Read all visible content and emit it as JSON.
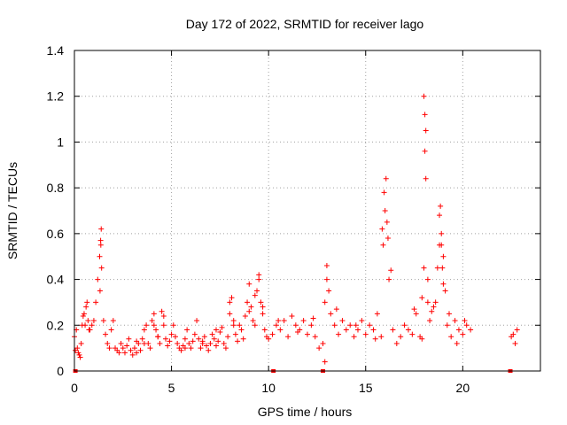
{
  "chart_data": {
    "type": "scatter",
    "title": "Day 172 of 2022, SRMTID for receiver lago",
    "xlabel": "GPS time / hours",
    "ylabel": "SRMTID / TECUs",
    "xlim": [
      0,
      24
    ],
    "ylim": [
      0,
      1.4
    ],
    "xticks": [
      0,
      5,
      10,
      15,
      20
    ],
    "xtick_labels": [
      "0",
      "5",
      "10",
      "15",
      "20"
    ],
    "yticks": [
      0,
      0.2,
      0.4,
      0.6,
      0.8,
      1,
      1.2,
      1.4
    ],
    "ytick_labels": [
      "0",
      "0.2",
      "0.4",
      "0.6",
      "0.8",
      "1",
      "1.2",
      "1.4"
    ],
    "grid": true,
    "marker": "plus",
    "color": "#ff0000",
    "series": [
      {
        "name": "SRMTID",
        "x": [
          0.0,
          0.1,
          0.2,
          0.3,
          0.4,
          0.5,
          0.6,
          0.7,
          0.8,
          0.9,
          1.0,
          1.1,
          1.2,
          1.3,
          1.35,
          1.4,
          1.5,
          1.6,
          1.7,
          1.8,
          1.9,
          2.0,
          2.1,
          2.2,
          2.3,
          2.4,
          2.5,
          2.6,
          2.7,
          2.8,
          2.9,
          3.0,
          3.1,
          3.2,
          3.3,
          3.4,
          3.5,
          3.6,
          3.7,
          3.8,
          3.9,
          4.0,
          4.1,
          4.2,
          4.3,
          4.4,
          4.5,
          4.6,
          4.7,
          4.8,
          4.9,
          5.0,
          5.1,
          5.2,
          5.3,
          5.4,
          5.5,
          5.6,
          5.7,
          5.8,
          5.9,
          6.0,
          6.1,
          6.2,
          6.3,
          6.4,
          6.5,
          6.6,
          6.7,
          6.8,
          6.9,
          7.0,
          7.1,
          7.2,
          7.3,
          7.4,
          7.5,
          7.6,
          7.7,
          7.8,
          7.9,
          8.0,
          8.1,
          8.2,
          8.3,
          8.4,
          8.5,
          8.6,
          8.7,
          8.8,
          8.9,
          9.0,
          9.1,
          9.2,
          9.3,
          9.4,
          9.5,
          9.6,
          9.7,
          9.8,
          9.9,
          10.0,
          10.2,
          10.4,
          10.6,
          10.8,
          11.0,
          11.2,
          11.4,
          11.6,
          11.8,
          12.0,
          12.2,
          12.4,
          12.6,
          12.8,
          12.9,
          13.0,
          13.1,
          13.2,
          13.4,
          13.6,
          13.8,
          14.0,
          14.2,
          14.4,
          14.6,
          14.8,
          15.0,
          15.2,
          15.4,
          15.6,
          15.8,
          15.9,
          16.0,
          16.1,
          16.2,
          16.4,
          16.6,
          16.8,
          17.0,
          17.2,
          17.4,
          17.6,
          17.8,
          17.9,
          18.0,
          18.05,
          18.1,
          18.2,
          18.3,
          18.4,
          18.5,
          18.6,
          18.7,
          18.8,
          18.9,
          19.0,
          19.1,
          19.2,
          19.4,
          19.6,
          19.8,
          20.0,
          20.2,
          20.4,
          22.5,
          22.6,
          22.7,
          22.8,
          0.05,
          0.15,
          0.25,
          0.35,
          0.45,
          0.55,
          0.65,
          0.75,
          1.32,
          1.36,
          1.38,
          3.2,
          3.6,
          4.1,
          4.3,
          4.6,
          5.7,
          6.6,
          7.3,
          8.0,
          8.2,
          9.0,
          9.3,
          9.5,
          9.7,
          10.5,
          11.5,
          12.3,
          12.9,
          13.0,
          13.5,
          14.5,
          15.5,
          15.85,
          15.95,
          16.05,
          16.15,
          16.3,
          17.5,
          17.9,
          18.0,
          18.05,
          18.1,
          18.2,
          18.8,
          18.85,
          18.9,
          18.95,
          19.0,
          19.3,
          19.7,
          20.1
        ],
        "y": [
          0.15,
          0.18,
          0.08,
          0.06,
          0.2,
          0.25,
          0.28,
          0.22,
          0.18,
          0.2,
          0.22,
          0.3,
          0.4,
          0.5,
          0.57,
          0.45,
          0.22,
          0.16,
          0.12,
          0.1,
          0.18,
          0.22,
          0.1,
          0.09,
          0.08,
          0.12,
          0.1,
          0.08,
          0.11,
          0.14,
          0.09,
          0.07,
          0.1,
          0.13,
          0.12,
          0.09,
          0.14,
          0.18,
          0.2,
          0.12,
          0.1,
          0.22,
          0.25,
          0.18,
          0.15,
          0.12,
          0.26,
          0.2,
          0.14,
          0.11,
          0.13,
          0.16,
          0.2,
          0.15,
          0.12,
          0.1,
          0.09,
          0.11,
          0.14,
          0.18,
          0.12,
          0.1,
          0.13,
          0.16,
          0.22,
          0.14,
          0.1,
          0.12,
          0.15,
          0.11,
          0.09,
          0.12,
          0.16,
          0.14,
          0.11,
          0.13,
          0.17,
          0.19,
          0.12,
          0.1,
          0.15,
          0.25,
          0.32,
          0.22,
          0.16,
          0.13,
          0.2,
          0.18,
          0.14,
          0.24,
          0.3,
          0.38,
          0.28,
          0.22,
          0.2,
          0.35,
          0.4,
          0.3,
          0.25,
          0.18,
          0.15,
          0.14,
          0.16,
          0.2,
          0.18,
          0.22,
          0.15,
          0.24,
          0.2,
          0.18,
          0.22,
          0.16,
          0.2,
          0.15,
          0.1,
          0.12,
          0.3,
          0.4,
          0.35,
          0.25,
          0.2,
          0.16,
          0.22,
          0.18,
          0.2,
          0.15,
          0.18,
          0.22,
          0.16,
          0.2,
          0.18,
          0.25,
          0.15,
          0.55,
          0.7,
          0.65,
          0.4,
          0.18,
          0.12,
          0.15,
          0.2,
          0.18,
          0.16,
          0.25,
          0.15,
          0.32,
          0.45,
          1.12,
          1.05,
          0.3,
          0.22,
          0.26,
          0.28,
          0.3,
          0.45,
          0.55,
          0.6,
          0.5,
          0.35,
          0.2,
          0.15,
          0.22,
          0.18,
          0.16,
          0.2,
          0.18,
          0.15,
          0.16,
          0.12,
          0.18,
          0.09,
          0.1,
          0.07,
          0.12,
          0.24,
          0.2,
          0.3,
          0.18,
          0.35,
          0.55,
          0.62,
          0.08,
          0.12,
          0.2,
          0.15,
          0.24,
          0.1,
          0.13,
          0.18,
          0.3,
          0.2,
          0.26,
          0.33,
          0.42,
          0.28,
          0.22,
          0.17,
          0.23,
          0.04,
          0.46,
          0.27,
          0.2,
          0.14,
          0.62,
          0.78,
          0.84,
          0.58,
          0.44,
          0.27,
          0.14,
          1.2,
          0.96,
          0.84,
          0.4,
          0.68,
          0.72,
          0.55,
          0.45,
          0.38,
          0.25,
          0.12,
          0.22
        ]
      }
    ],
    "zero_markers_x": [
      0.05,
      10.25,
      12.8,
      22.45
    ]
  }
}
